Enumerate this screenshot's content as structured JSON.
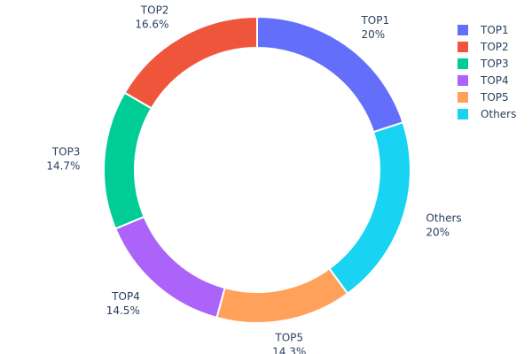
{
  "chart_data": {
    "type": "pie",
    "hole": true,
    "direction": "clockwise",
    "categories": [
      "TOP1",
      "Others",
      "TOP5",
      "TOP4",
      "TOP3",
      "TOP2"
    ],
    "values": [
      20,
      20,
      14.3,
      14.5,
      14.7,
      16.6
    ],
    "labels": [
      "20%",
      "20%",
      "14.3%",
      "14.5%",
      "14.7%",
      "16.6%"
    ],
    "colors": [
      "#636efa",
      "#19d3f3",
      "#ffa15a",
      "#ab63fa",
      "#00cc96",
      "#ef553b"
    ],
    "legend": {
      "placement": "top-right",
      "entries": [
        {
          "name": "TOP1",
          "color": "#636efa"
        },
        {
          "name": "TOP2",
          "color": "#ef553b"
        },
        {
          "name": "TOP3",
          "color": "#00cc96"
        },
        {
          "name": "TOP4",
          "color": "#ab63fa"
        },
        {
          "name": "TOP5",
          "color": "#ffa15a"
        },
        {
          "name": "Others",
          "color": "#19d3f3"
        }
      ]
    }
  }
}
